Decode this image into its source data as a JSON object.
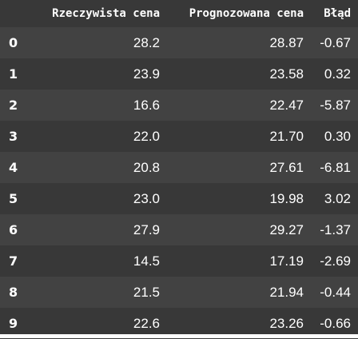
{
  "table": {
    "columns": [
      "",
      "Rzeczywista cena",
      "Prognozowana cena",
      "Błąd"
    ],
    "rows": [
      {
        "index": "0",
        "actual": "28.2",
        "predicted": "28.87",
        "error": "-0.67"
      },
      {
        "index": "1",
        "actual": "23.9",
        "predicted": "23.58",
        "error": "0.32"
      },
      {
        "index": "2",
        "actual": "16.6",
        "predicted": "22.47",
        "error": "-5.87"
      },
      {
        "index": "3",
        "actual": "22.0",
        "predicted": "21.70",
        "error": "0.30"
      },
      {
        "index": "4",
        "actual": "20.8",
        "predicted": "27.61",
        "error": "-6.81"
      },
      {
        "index": "5",
        "actual": "23.0",
        "predicted": "19.98",
        "error": "3.02"
      },
      {
        "index": "6",
        "actual": "27.9",
        "predicted": "29.27",
        "error": "-1.37"
      },
      {
        "index": "7",
        "actual": "14.5",
        "predicted": "17.19",
        "error": "-2.69"
      },
      {
        "index": "8",
        "actual": "21.5",
        "predicted": "21.94",
        "error": "-0.44"
      },
      {
        "index": "9",
        "actual": "22.6",
        "predicted": "23.26",
        "error": "-0.66"
      }
    ]
  }
}
